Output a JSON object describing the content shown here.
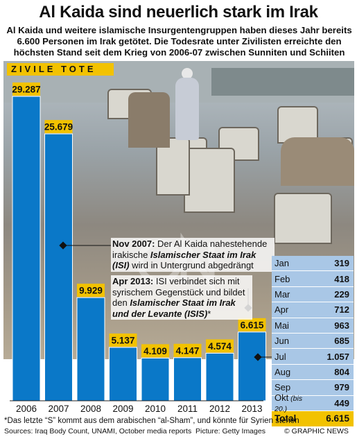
{
  "title": "Al Kaida sind neuerlich stark im Irak",
  "subtitle": "Al Kaida und weitere islamische Insurgentengruppen haben dieses Jahr bereits 6.600 Personen im Irak getötet. Die Todesrate unter Zivilisten erreichte den höchsten Stand seit dem Krieg von 2006-07 zwischen Sunniten und Schiiten",
  "colors": {
    "bar": "#0a78c8",
    "highlight": "#f2c200",
    "table": "#a9c7e6"
  },
  "chart_data": {
    "type": "bar",
    "title": "ZIVILE TOTE",
    "categories": [
      "2006",
      "2007",
      "2008",
      "2009",
      "2010",
      "2011",
      "2012",
      "2013"
    ],
    "values": [
      29287,
      25679,
      9929,
      5137,
      4109,
      4147,
      4574,
      6615
    ],
    "value_labels": [
      "29.287",
      "25.679",
      "9.929",
      "5.137",
      "4.109",
      "4.147",
      "4.574",
      "6.615"
    ],
    "ylim": [
      0,
      29287
    ]
  },
  "annotations": [
    {
      "date": "Nov 2007:",
      "text1": " Der Al Kaida nahestehende irakische ",
      "em": "Islamischer Staat im Irak (ISI)",
      "text2": " wird in Untergrund abgedrängt"
    },
    {
      "date": "Apr 2013:",
      "text1": " ISI verbindet sich mit syrischem Gegenstück und bildet den ",
      "em": "Islamischer Staat im Irak und der Levante (ISIS)",
      "text2": "*"
    }
  ],
  "table": {
    "rows": [
      {
        "month": "Jan",
        "value": "319"
      },
      {
        "month": "Feb",
        "value": "418"
      },
      {
        "month": "Mar",
        "value": "229"
      },
      {
        "month": "Apr",
        "value": "712"
      },
      {
        "month": "Mai",
        "value": "963"
      },
      {
        "month": "Jun",
        "value": "685"
      },
      {
        "month": "Jul",
        "value": "1.057"
      },
      {
        "month": "Aug",
        "value": "804"
      },
      {
        "month": "Sep",
        "value": "979"
      },
      {
        "month": "Okt",
        "note": "(bis 20.)",
        "value": "449"
      }
    ],
    "total_label": "Total",
    "total_value": "6.615"
  },
  "footnote": "*Das letzte “S” kommt aus dem arabischen “al-Sham”, und könnte für Syrien stehen",
  "sources": "Sources: Iraq Body Count, UNAMI, October media reports",
  "picture_credit": "Picture: Getty Images",
  "copyright": "© GRAPHIC NEWS"
}
